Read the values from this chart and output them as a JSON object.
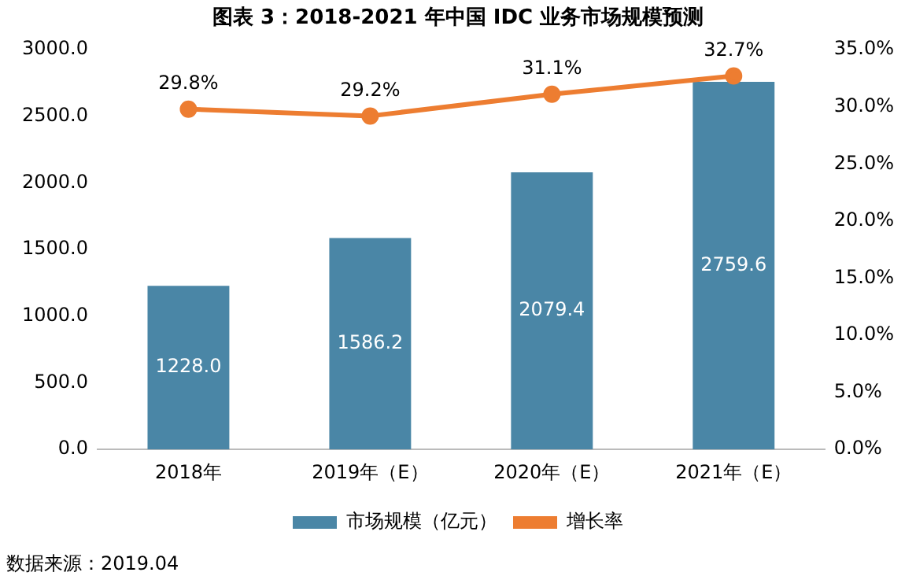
{
  "chart_data": {
    "type": "bar",
    "title": "图表 3：2018-2021 年中国 IDC 业务市场规模预测",
    "categories": [
      "2018年",
      "2019年（E）",
      "2020年（E）",
      "2021年（E）"
    ],
    "series": [
      {
        "name": "市场规模（亿元）",
        "color": "#4a86a6",
        "values": [
          1228.0,
          1586.2,
          2079.4,
          2759.6
        ],
        "value_labels": [
          "1228.0",
          "1586.2",
          "2079.4",
          "2759.6"
        ]
      },
      {
        "name": "增长率",
        "type": "line",
        "axis": "y2",
        "color": "#ed7d31",
        "values": [
          29.8,
          29.2,
          31.1,
          32.7
        ],
        "value_labels": [
          "29.8%",
          "29.2%",
          "31.1%",
          "32.7%"
        ]
      }
    ],
    "ylim": [
      0,
      3000
    ],
    "yticks": [
      {
        "value": 0,
        "label": "0.0"
      },
      {
        "value": 500,
        "label": "500.0"
      },
      {
        "value": 1000,
        "label": "1000.0"
      },
      {
        "value": 1500,
        "label": "1500.0"
      },
      {
        "value": 2000,
        "label": "2000.0"
      },
      {
        "value": 2500,
        "label": "2500.0"
      },
      {
        "value": 3000,
        "label": "3000.0"
      }
    ],
    "y2lim": [
      0,
      35
    ],
    "y2ticks": [
      {
        "value": 0,
        "label": "0.0%"
      },
      {
        "value": 5,
        "label": "5.0%"
      },
      {
        "value": 10,
        "label": "10.0%"
      },
      {
        "value": 15,
        "label": "15.0%"
      },
      {
        "value": 20,
        "label": "20.0%"
      },
      {
        "value": 25,
        "label": "25.0%"
      },
      {
        "value": 30,
        "label": "30.0%"
      },
      {
        "value": 35,
        "label": "35.0%"
      }
    ],
    "legend": "bottom",
    "marker": "circle",
    "annotations": [
      "数据来源：2019.04"
    ]
  }
}
